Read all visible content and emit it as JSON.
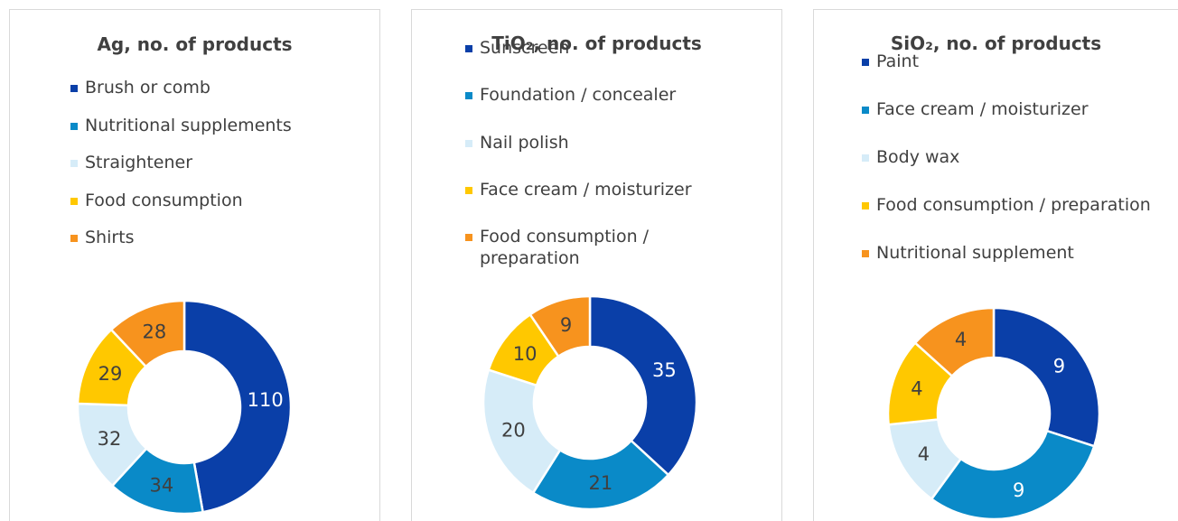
{
  "chart_data": [
    {
      "type": "donut",
      "title": "Ag, no. of products",
      "categories": [
        "Brush or comb",
        "Nutritional supplements",
        "Straightener",
        "Food consumption",
        "Shirts"
      ],
      "values": [
        110,
        34,
        32,
        29,
        28
      ],
      "colors": [
        "#0a3fa8",
        "#0a8ac8",
        "#d6ecf8",
        "#ffc800",
        "#f7931e"
      ],
      "label_colors": [
        "#ffffff",
        "#404040",
        "#404040",
        "#404040",
        "#404040"
      ]
    },
    {
      "type": "donut",
      "title": "TiO₂, no. of products",
      "categories": [
        "Sunscreen",
        "Foundation / concealer",
        "Nail polish",
        "Face cream / moisturizer",
        "Food consumption / preparation"
      ],
      "values": [
        35,
        21,
        20,
        10,
        9
      ],
      "colors": [
        "#0a3fa8",
        "#0a8ac8",
        "#d6ecf8",
        "#ffc800",
        "#f7931e"
      ],
      "label_colors": [
        "#ffffff",
        "#404040",
        "#404040",
        "#404040",
        "#404040"
      ]
    },
    {
      "type": "donut",
      "title": "SiO₂, no. of products",
      "categories": [
        "Paint",
        "Face cream / moisturizer",
        "Body wax",
        "Food consumption / preparation",
        "Nutritional supplement"
      ],
      "values": [
        9,
        9,
        4,
        4,
        4
      ],
      "colors": [
        "#0a3fa8",
        "#0a8ac8",
        "#d6ecf8",
        "#ffc800",
        "#f7931e"
      ],
      "label_colors": [
        "#ffffff",
        "#ffffff",
        "#404040",
        "#404040",
        "#404040"
      ]
    }
  ]
}
